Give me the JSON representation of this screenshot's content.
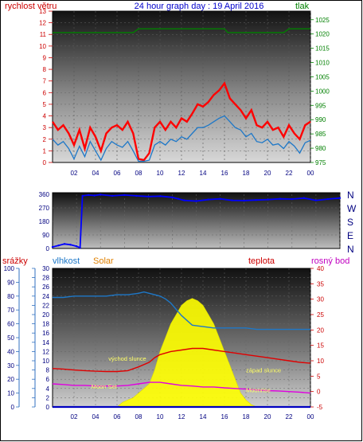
{
  "title": "24 hour graph day : 19 April 2016",
  "colors": {
    "wind": "#ff0000",
    "gust_line": "#1e78c8",
    "pressure": "#008000",
    "humidity": "#1e78c8",
    "temperature": "#e00000",
    "dewpoint": "#e000e0",
    "solar": "#ffff00",
    "rain": "#0000c0",
    "direction": "#0000ff",
    "left_axis_label": "#cc0000",
    "title_color": "#0000cc"
  },
  "chart_data": [
    {
      "type": "line",
      "name": "wind-pressure",
      "left_label": "rychlost větru",
      "right_label": "tlak",
      "ylim_left": [
        0,
        13
      ],
      "yticks_left": [
        "0",
        "1",
        "2",
        "3",
        "4",
        "5",
        "6",
        "7",
        "8",
        "9",
        "10",
        "11",
        "12",
        "13"
      ],
      "ylim_right": [
        975,
        1028
      ],
      "yticks_right": [
        "975",
        "980",
        "985",
        "990",
        "995",
        "1000",
        "1005",
        "1010",
        "1015",
        "1020",
        "1025"
      ],
      "xlim": [
        0,
        24
      ],
      "xticks": [
        "02",
        "04",
        "06",
        "08",
        "10",
        "12",
        "14",
        "16",
        "18",
        "20",
        "22",
        "00"
      ],
      "series": [
        {
          "name": "",
          "role": "wind_max",
          "x": [
            0,
            0.5,
            1,
            1.5,
            2,
            2.5,
            3,
            3.5,
            4,
            4.5,
            5,
            5.5,
            6,
            6.5,
            7,
            7.5,
            8,
            8.5,
            9,
            9.5,
            10,
            10.5,
            11,
            11.5,
            12,
            12.5,
            13,
            13.5,
            14,
            14.5,
            15,
            15.5,
            16,
            16.5,
            17,
            17.5,
            18,
            18.5,
            19,
            19.5,
            20,
            20.5,
            21,
            21.5,
            22,
            22.5,
            23,
            23.5,
            24
          ],
          "values": [
            3.5,
            2.8,
            3.2,
            2.5,
            1.5,
            2.8,
            1.2,
            3.0,
            2.2,
            1.0,
            2.5,
            3.0,
            3.2,
            2.8,
            3.5,
            2.5,
            0.3,
            0.2,
            0.8,
            3.0,
            3.5,
            2.8,
            3.5,
            3.0,
            3.8,
            3.5,
            4.2,
            5.0,
            4.8,
            5.2,
            5.8,
            6.2,
            6.8,
            5.5,
            5.0,
            4.5,
            3.8,
            4.5,
            3.2,
            3.0,
            3.5,
            2.8,
            3.0,
            2.2,
            3.2,
            2.5,
            2.0,
            3.2,
            3.5
          ]
        },
        {
          "name": "",
          "role": "wind_avg",
          "x": [
            0,
            0.5,
            1,
            1.5,
            2,
            2.5,
            3,
            3.5,
            4,
            4.5,
            5,
            5.5,
            6,
            6.5,
            7,
            7.5,
            8,
            8.5,
            9,
            9.5,
            10,
            10.5,
            11,
            11.5,
            12,
            12.5,
            13,
            13.5,
            14,
            14.5,
            15,
            15.5,
            16,
            16.5,
            17,
            17.5,
            18,
            18.5,
            19,
            19.5,
            20,
            20.5,
            21,
            21.5,
            22,
            22.5,
            23,
            23.5,
            24
          ],
          "values": [
            2.0,
            1.5,
            1.8,
            1.2,
            0.3,
            1.4,
            0.5,
            1.8,
            1.0,
            0.2,
            1.2,
            1.8,
            1.5,
            1.3,
            1.8,
            1.0,
            0.1,
            0.1,
            0.2,
            1.5,
            1.8,
            1.5,
            2.0,
            1.8,
            2.2,
            2.0,
            2.5,
            3.0,
            3.0,
            3.2,
            3.5,
            3.8,
            4.0,
            3.5,
            3.0,
            2.8,
            2.2,
            2.5,
            1.8,
            1.7,
            2.0,
            1.5,
            1.6,
            1.2,
            1.8,
            1.4,
            0.8,
            1.7,
            1.9
          ]
        },
        {
          "name": "",
          "role": "pressure",
          "x": [
            0,
            2,
            4,
            6,
            7.5,
            8,
            10,
            12,
            14,
            16,
            16.3,
            18,
            20,
            21.5,
            22,
            24
          ],
          "values": [
            1020.5,
            1020.5,
            1020.5,
            1020.5,
            1020.5,
            1021.8,
            1021.8,
            1021.8,
            1021.8,
            1021.8,
            1020.5,
            1020.5,
            1020.5,
            1020.5,
            1021.8,
            1021.8
          ]
        }
      ]
    },
    {
      "type": "scatter",
      "name": "wind-direction",
      "ylim": [
        0,
        360
      ],
      "yticks": [
        "0",
        "90",
        "180",
        "270",
        "360"
      ],
      "compass": [
        "N",
        "W",
        "S",
        "E",
        "N"
      ],
      "xlim": [
        0,
        24
      ],
      "x": [
        0,
        0.5,
        1,
        1.5,
        2,
        2.3,
        2.5,
        3,
        3.5,
        4,
        5,
        6,
        7,
        8,
        9,
        10,
        10.5,
        11,
        12,
        13,
        14,
        15,
        16,
        17,
        18,
        19,
        20,
        21,
        22,
        23,
        24
      ],
      "values": [
        10,
        20,
        30,
        25,
        15,
        5,
        350,
        355,
        352,
        358,
        350,
        355,
        350,
        345,
        348,
        340,
        330,
        320,
        315,
        325,
        330,
        320,
        318,
        322,
        325,
        330,
        328,
        335,
        320,
        328,
        335
      ]
    },
    {
      "type": "area",
      "name": "rain-humidity-solar-temperature",
      "labels": {
        "rain": "srážky",
        "humidity": "vlhkost",
        "solar": "Solar",
        "temperature": "teplota",
        "dewpoint": "rosný bod"
      },
      "ylim_rain": [
        0,
        100
      ],
      "yticks_rain": [
        "0",
        "10",
        "20",
        "30",
        "40",
        "50",
        "60",
        "70",
        "80",
        "90",
        "100"
      ],
      "ylim_humidity": [
        0,
        30
      ],
      "yticks_humidity": [
        "0",
        "2",
        "4",
        "6",
        "8",
        "10",
        "12",
        "14",
        "16",
        "18",
        "20",
        "22",
        "24",
        "26",
        "28",
        "30"
      ],
      "ylim_temperature": [
        -5,
        40
      ],
      "yticks_temperature": [
        "-5",
        "0",
        "5",
        "10",
        "15",
        "20",
        "25",
        "30",
        "35",
        "40"
      ],
      "xlim": [
        0,
        24
      ],
      "xticks": [
        "02",
        "04",
        "06",
        "08",
        "10",
        "12",
        "14",
        "16",
        "18",
        "20",
        "22",
        "00"
      ],
      "series": [
        {
          "name": "",
          "role": "humidity",
          "x": [
            0,
            1,
            2,
            3,
            4,
            5,
            6,
            7,
            8,
            8.5,
            9,
            9.5,
            10,
            10.5,
            11,
            12,
            13,
            14,
            15,
            16,
            17,
            18,
            19,
            20,
            21,
            22,
            23,
            24
          ],
          "values": [
            79,
            79,
            80,
            80,
            80,
            80,
            81,
            81,
            82,
            83,
            82,
            81,
            80,
            78,
            75,
            66,
            59,
            58,
            57,
            57,
            57,
            57,
            56,
            56,
            56,
            56,
            56,
            56
          ]
        },
        {
          "name": "",
          "role": "temperature",
          "x": [
            0,
            1,
            2,
            3,
            4,
            5,
            6,
            7,
            8,
            9,
            9.5,
            10,
            11,
            12,
            13,
            14,
            15,
            16,
            17,
            18,
            19,
            20,
            21,
            22,
            23,
            24
          ],
          "values": [
            7.5,
            7.3,
            7,
            6.8,
            6.6,
            6.5,
            6.5,
            6.8,
            8,
            9.5,
            11,
            12,
            13,
            13.5,
            14,
            14,
            13.5,
            13,
            12.5,
            12,
            11.5,
            11,
            10.5,
            10,
            9.5,
            9.2
          ]
        },
        {
          "name": "",
          "role": "dewpoint",
          "x": [
            0,
            1,
            2,
            3,
            4,
            5,
            6,
            7,
            8,
            9,
            10,
            11,
            12,
            13,
            14,
            15,
            16,
            17,
            18,
            19,
            20,
            21,
            22,
            23,
            24
          ],
          "values": [
            2.5,
            2.3,
            2,
            2,
            1.8,
            1.8,
            1.8,
            2,
            2.5,
            3,
            3,
            2.5,
            2,
            1.8,
            1.5,
            1.5,
            1.2,
            1,
            0.8,
            0.5,
            0.3,
            0.2,
            0,
            -0.2,
            -0.5
          ]
        },
        {
          "name": "",
          "role": "solar",
          "x": [
            5.5,
            6,
            6.5,
            7,
            7.5,
            8,
            8.5,
            9,
            9.5,
            10,
            10.5,
            11,
            11.5,
            12,
            12.5,
            13,
            13.5,
            14,
            14.5,
            15,
            15.5,
            16,
            16.5,
            17,
            17.5,
            18,
            18.5,
            19
          ],
          "values": [
            0,
            0,
            1,
            1.5,
            2,
            3,
            4,
            5,
            8,
            12,
            15,
            18,
            20,
            22,
            23,
            23.5,
            23,
            22,
            20,
            18,
            15,
            12,
            9,
            6,
            3,
            1.5,
            0.5,
            0
          ]
        },
        {
          "name": "",
          "role": "rain",
          "x": [
            0,
            24
          ],
          "values": [
            0,
            0
          ]
        }
      ],
      "annotations": [
        {
          "text": "východ slunce",
          "x": 5.2,
          "y": 10
        },
        {
          "text": "Moon Set",
          "x": 3.6,
          "y": 4
        },
        {
          "text": "západ slunce",
          "x": 18.0,
          "y": 7.5
        },
        {
          "text": "Moonrise",
          "x": 18.0,
          "y": 3.2
        }
      ]
    }
  ]
}
